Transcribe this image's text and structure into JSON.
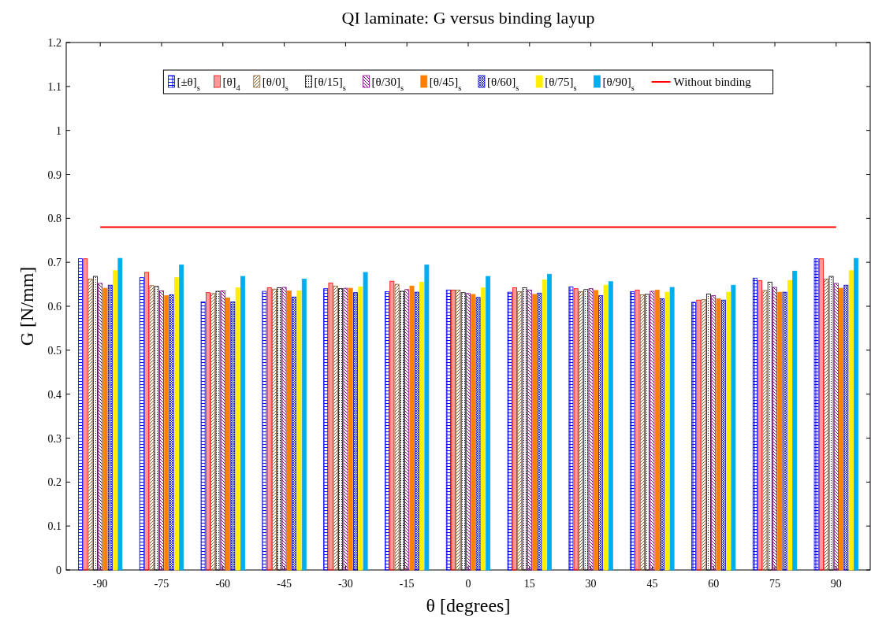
{
  "chart_data": {
    "type": "bar",
    "title": "QI laminate: G versus binding layup",
    "xlabel": "θ [degrees]",
    "ylabel": "G [N/mm]",
    "categories": [
      "-90",
      "-75",
      "-60",
      "-45",
      "-30",
      "-15",
      "0",
      "15",
      "30",
      "45",
      "60",
      "75",
      "90"
    ],
    "ylim": [
      0,
      1.2
    ],
    "yticks": [
      0,
      0.1,
      0.2,
      0.3,
      0.4,
      0.5,
      0.6,
      0.7,
      0.8,
      0.9,
      1,
      1.1,
      1.2
    ],
    "grid": false,
    "legend": "top",
    "series": [
      {
        "name": "[±θ]$_{s}$",
        "color": "#0000ff",
        "values": [
          0.708,
          0.665,
          0.61,
          0.634,
          0.64,
          0.633,
          0.637,
          0.632,
          0.644,
          0.633,
          0.609,
          0.664,
          0.708
        ]
      },
      {
        "name": "[θ]$_{4}$",
        "color": "#ff0000",
        "values": [
          0.708,
          0.677,
          0.631,
          0.642,
          0.653,
          0.657,
          0.637,
          0.642,
          0.64,
          0.637,
          0.614,
          0.658,
          0.708
        ]
      },
      {
        "name": "[θ/0]$_{s}$",
        "color": "#8b5a2b",
        "values": [
          0.662,
          0.647,
          0.629,
          0.639,
          0.646,
          0.65,
          0.637,
          0.633,
          0.633,
          0.626,
          0.615,
          0.636,
          0.662
        ]
      },
      {
        "name": "[θ/15]$_{s}$",
        "color": "#000000",
        "values": [
          0.668,
          0.645,
          0.634,
          0.642,
          0.64,
          0.634,
          0.631,
          0.642,
          0.638,
          0.627,
          0.628,
          0.655,
          0.668
        ]
      },
      {
        "name": "[θ/30]$_{s}$",
        "color": "#800080",
        "values": [
          0.652,
          0.635,
          0.635,
          0.643,
          0.641,
          0.638,
          0.629,
          0.637,
          0.64,
          0.634,
          0.624,
          0.643,
          0.652
        ]
      },
      {
        "name": "[θ/45]$_{s}$",
        "color": "#ff8000",
        "values": [
          0.641,
          0.624,
          0.619,
          0.635,
          0.641,
          0.646,
          0.627,
          0.627,
          0.636,
          0.637,
          0.617,
          0.632,
          0.641
        ]
      },
      {
        "name": "[θ/60]$_{s}$",
        "color": "#0000cc",
        "values": [
          0.648,
          0.626,
          0.61,
          0.621,
          0.631,
          0.632,
          0.62,
          0.63,
          0.624,
          0.617,
          0.614,
          0.632,
          0.648
        ]
      },
      {
        "name": "[θ/75]$_{s}$",
        "color": "#ffee00",
        "values": [
          0.681,
          0.665,
          0.642,
          0.635,
          0.644,
          0.655,
          0.642,
          0.66,
          0.648,
          0.632,
          0.632,
          0.659,
          0.681
        ]
      },
      {
        "name": "[θ/90]$_{s}$",
        "color": "#00aeef",
        "values": [
          0.709,
          0.694,
          0.668,
          0.662,
          0.677,
          0.694,
          0.668,
          0.673,
          0.656,
          0.643,
          0.648,
          0.68,
          0.709
        ]
      },
      {
        "name": "Without binding",
        "type": "line",
        "color": "#ff0000",
        "x": [
          "-90",
          "90"
        ],
        "values": [
          0.78,
          0.78
        ]
      }
    ]
  }
}
